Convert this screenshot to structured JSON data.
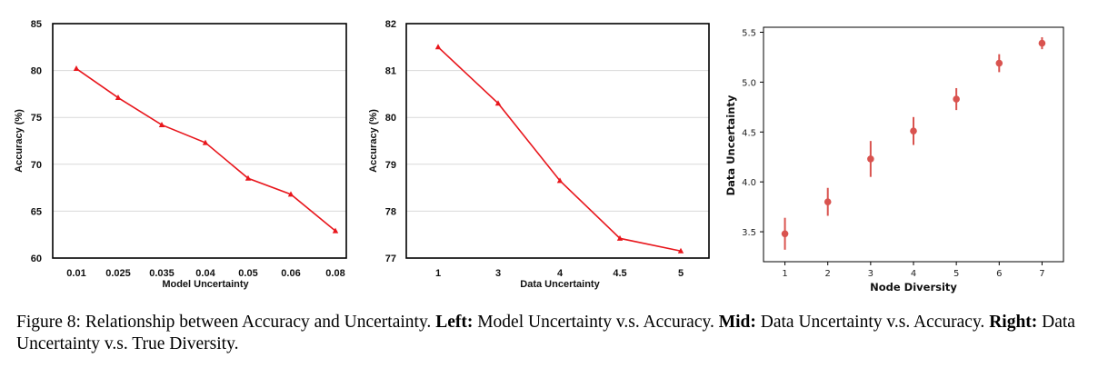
{
  "caption": {
    "prefix": "Figure 8: Relationship between Accuracy and Uncertainty.",
    "left_label": "Left:",
    "left_text": "Model Uncertainty v.s. Accuracy.",
    "mid_label": "Mid:",
    "mid_text": "Data Uncertainty v.s. Accuracy.",
    "right_label": "Right:",
    "right_text": "Data Uncertainty v.s. True Diversity."
  },
  "colors": {
    "line": "#e8161c",
    "points": "#d9534f",
    "grid": "#d9d9d9"
  },
  "chart_data": [
    {
      "type": "line",
      "categories": [
        "0.01",
        "0.025",
        "0.035",
        "0.04",
        "0.05",
        "0.06",
        "0.08"
      ],
      "values": [
        80.2,
        77.1,
        74.2,
        72.3,
        68.5,
        66.8,
        62.9
      ],
      "xlabel": "Model Uncertainty",
      "ylabel": "Accuracy (%)",
      "ylim": [
        60,
        85
      ],
      "yticks": [
        "60",
        "65",
        "70",
        "75",
        "80",
        "85"
      ],
      "grid": "horizontal",
      "marker": "triangle"
    },
    {
      "type": "line",
      "categories": [
        "1",
        "3",
        "4",
        "4.5",
        "5"
      ],
      "values": [
        81.5,
        80.3,
        78.65,
        77.42,
        77.15
      ],
      "xlabel": "Data Uncertainty",
      "ylabel": "Accuracy (%)",
      "ylim": [
        77,
        82
      ],
      "yticks": [
        "77",
        "78",
        "79",
        "80",
        "81",
        "82"
      ],
      "grid": "horizontal",
      "marker": "triangle"
    },
    {
      "type": "scatter",
      "x": [
        1,
        2,
        3,
        4,
        5,
        6,
        7
      ],
      "values": [
        3.48,
        3.8,
        4.23,
        4.51,
        4.83,
        5.19,
        5.39
      ],
      "error": [
        0.16,
        0.14,
        0.18,
        0.14,
        0.11,
        0.09,
        0.06
      ],
      "xlabel": "Node Diversity",
      "ylabel": "Data Uncertainty",
      "xlim": [
        0.5,
        7.5
      ],
      "ylim": [
        3.2,
        5.55
      ],
      "xticks": [
        "1",
        "2",
        "3",
        "4",
        "5",
        "6",
        "7"
      ],
      "yticks": [
        "3.5",
        "4.0",
        "4.5",
        "5.0",
        "5.5"
      ],
      "grid": "none",
      "marker": "circle with error bars"
    }
  ]
}
